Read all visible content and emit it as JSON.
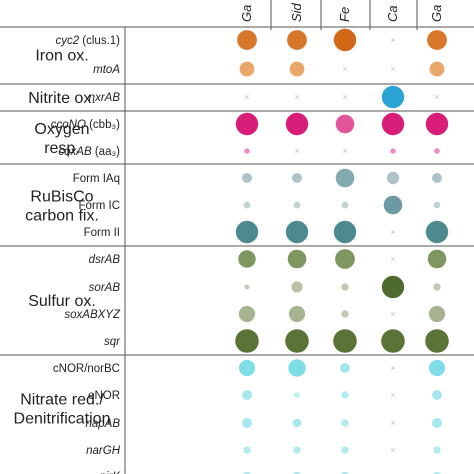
{
  "chart_data": {
    "type": "dot-matrix",
    "columns": [
      "Ga",
      "Sid",
      "Fe",
      "Ca",
      "Ga"
    ],
    "categories": [
      {
        "label": [
          "Iron ox."
        ],
        "genes": [
          {
            "name": "cyc2",
            "note": " (clus.1)",
            "italic": true,
            "values": [
              3.2,
              3.2,
              3.6,
              0,
              3.2
            ],
            "colors": [
              "#d8772a",
              "#d8772a",
              "#d06818",
              null,
              "#d8772a"
            ]
          },
          {
            "name": "mtoA",
            "note": "",
            "italic": true,
            "values": [
              2.4,
              2.4,
              0,
              0,
              2.4
            ],
            "colors": [
              "#e8a66a",
              "#e8a66a",
              null,
              null,
              "#e8a66a"
            ]
          }
        ]
      },
      {
        "label": [
          "Nitrite ox."
        ],
        "genes": [
          {
            "name": "nxrAB",
            "note": "",
            "italic": true,
            "values": [
              0,
              0,
              0,
              3.6,
              0
            ],
            "colors": [
              null,
              null,
              null,
              "#2ba3d4",
              null
            ]
          }
        ]
      },
      {
        "label": [
          "Oxygen",
          "resp."
        ],
        "genes": [
          {
            "name": "ccoNO",
            "note": " (cbb₃)",
            "italic": true,
            "values": [
              3.6,
              3.6,
              3.0,
              3.6,
              3.6
            ],
            "colors": [
              "#d81e78",
              "#d81e78",
              "#e2559a",
              "#d81e78",
              "#d81e78"
            ]
          },
          {
            "name": "coxAB",
            "note": " (aa₃)",
            "italic": true,
            "values": [
              0.9,
              0,
              0,
              0.9,
              0.9
            ],
            "colors": [
              "#ee8ec0",
              null,
              null,
              "#ee8ec0",
              "#ee8ec0"
            ]
          }
        ]
      },
      {
        "label": [
          "RuBisCo",
          "carbon fix."
        ],
        "genes": [
          {
            "name": "Form IAq",
            "note": "",
            "italic": false,
            "values": [
              1.6,
              1.6,
              3.0,
              2.0,
              1.6
            ],
            "colors": [
              "#aec3c8",
              "#aec3c8",
              "#83a8ad",
              "#aec3c8",
              "#aec3c8"
            ]
          },
          {
            "name": "Form IC",
            "note": "",
            "italic": false,
            "values": [
              1.1,
              1.1,
              1.1,
              3.0,
              1.1
            ],
            "colors": [
              "#c2d3d6",
              "#c2d3d6",
              "#c2d3d6",
              "#6d9aa2",
              "#c2d3d6"
            ]
          },
          {
            "name": "Form II",
            "note": "",
            "italic": false,
            "values": [
              3.6,
              3.6,
              3.6,
              0,
              3.6
            ],
            "colors": [
              "#4f8990",
              "#4f8990",
              "#4f8990",
              null,
              "#4f8990"
            ]
          }
        ]
      },
      {
        "label": [
          "Sulfur ox."
        ],
        "genes": [
          {
            "name": "dsrAB",
            "note": "",
            "italic": true,
            "values": [
              2.8,
              3.0,
              3.2,
              0,
              3.0
            ],
            "colors": [
              "#7f9660",
              "#7f9660",
              "#7f9660",
              null,
              "#7f9660"
            ]
          },
          {
            "name": "sorAB",
            "note": "",
            "italic": true,
            "values": [
              0.8,
              1.8,
              1.2,
              3.6,
              1.2
            ],
            "colors": [
              "#c2c9b4",
              "#b7c1a4",
              "#c2c9b4",
              "#4e6a2e",
              "#c2c9b4"
            ]
          },
          {
            "name": "soxABXYZ",
            "note": "",
            "italic": true,
            "values": [
              2.6,
              2.6,
              1.2,
              0,
              2.6
            ],
            "colors": [
              "#a7b291",
              "#a7b291",
              "#c2c9b4",
              null,
              "#a7b291"
            ]
          },
          {
            "name": "sqr",
            "note": "",
            "italic": true,
            "values": [
              3.8,
              3.8,
              3.8,
              3.8,
              3.8
            ],
            "colors": [
              "#5a7337",
              "#5a7337",
              "#5a7337",
              "#5a7337",
              "#5a7337"
            ]
          }
        ]
      },
      {
        "label": [
          "Nitrate red./",
          "Denitrification"
        ],
        "genes": [
          {
            "name": "cNOR/norBC",
            "note": "",
            "italic": false,
            "values": [
              2.6,
              2.8,
              1.6,
              0,
              2.6
            ],
            "colors": [
              "#7fdde5",
              "#7fdde5",
              "#a5e7ec",
              null,
              "#7fdde5"
            ]
          },
          {
            "name": "eNOR",
            "note": "",
            "italic": false,
            "values": [
              1.6,
              0.9,
              1.2,
              0,
              1.6
            ],
            "colors": [
              "#a5e7ec",
              "#bdeef1",
              "#b2ebef",
              null,
              "#a5e7ec"
            ]
          },
          {
            "name": "napAB",
            "note": "",
            "italic": true,
            "values": [
              1.6,
              1.4,
              1.2,
              0,
              1.6
            ],
            "colors": [
              "#a5e7ec",
              "#a5e7ec",
              "#b2ebef",
              null,
              "#a5e7ec"
            ]
          },
          {
            "name": "narGH",
            "note": "",
            "italic": true,
            "values": [
              1.2,
              1.2,
              1.2,
              0,
              1.2
            ],
            "colors": [
              "#b2ebef",
              "#b2ebef",
              "#b2ebef",
              null,
              "#b2ebef"
            ]
          },
          {
            "name": "nirK",
            "note": "",
            "italic": true,
            "values": [
              1.4,
              1.4,
              1.4,
              0,
              1.4
            ],
            "colors": [
              "#b2ebef",
              "#b2ebef",
              "#b2ebef",
              null,
              "#b2ebef"
            ]
          }
        ]
      }
    ]
  },
  "colors": {
    "absent_marker": "#c4c4c4",
    "rule": "#555555",
    "text": "#222222"
  }
}
